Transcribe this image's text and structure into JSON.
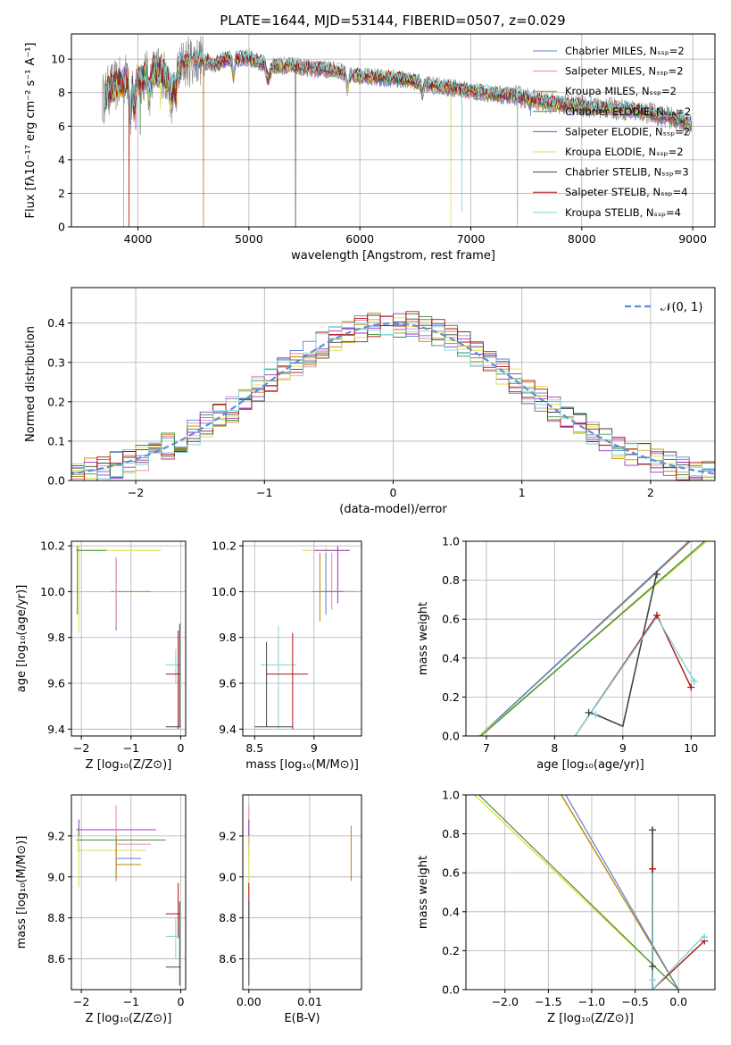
{
  "figure_title": "PLATE=1644, MJD=53144, FIBERID=0507, z=0.029",
  "colors": {
    "Chabrier MILES": "#5b7fd6",
    "Salpeter MILES": "#e38aa6",
    "Kroupa MILES": "#b8860b",
    "Chabrier ELODIE": "#3f8f3f",
    "Salpeter ELODIE": "#9b30c0",
    "Kroupa ELODIE": "#dde04a",
    "Chabrier STELIB": "#444444",
    "Salpeter STELIB": "#b01010",
    "Kroupa STELIB": "#7fd6d6",
    "gray": "#808080",
    "orange": "#e07020",
    "dashed": "#5b8fd6"
  },
  "chart_data": [
    {
      "id": "spectrum",
      "type": "line",
      "xlabel": "wavelength [Angstrom, rest frame]",
      "ylabel": "Flux [fλ10⁻¹⁷ erg cm⁻² s⁻¹ A⁻¹]",
      "xlim": [
        3400,
        9200
      ],
      "ylim": [
        0,
        11.5
      ],
      "xticks": [
        4000,
        5000,
        6000,
        7000,
        8000,
        9000
      ],
      "yticks": [
        0,
        2,
        4,
        6,
        8,
        10
      ],
      "legend_position": "top-right",
      "series": [
        {
          "name": "Chabrier MILES, Nₛₛₚ=2"
        },
        {
          "name": "Salpeter MILES, Nₛₛₚ=2"
        },
        {
          "name": "Kroupa MILES, Nₛₛₚ=2"
        },
        {
          "name": "Chabrier ELODIE, Nₛₛₚ=2"
        },
        {
          "name": "Salpeter ELODIE, Nₛₛₚ=2"
        },
        {
          "name": "Kroupa ELODIE, Nₛₛₚ=2"
        },
        {
          "name": "Chabrier STELIB, Nₛₛₚ=3"
        },
        {
          "name": "Salpeter STELIB, Nₛₛₚ=4"
        },
        {
          "name": "Kroupa STELIB, Nₛₛₚ=4"
        }
      ],
      "x": [
        3680,
        3720,
        3760,
        3800,
        3850,
        3900,
        3950,
        4000,
        4100,
        4200,
        4300,
        4400,
        4500,
        4600,
        4700,
        4800,
        4900,
        5000,
        5100,
        5200,
        5300,
        5400,
        5500,
        5600,
        5700,
        5800,
        5900,
        6000,
        6200,
        6400,
        6600,
        6800,
        7000,
        7200,
        7400,
        7600,
        7800,
        8000,
        8200,
        8400,
        8600,
        8800,
        8990
      ],
      "y": [
        7.6,
        8.0,
        8.3,
        8.4,
        8.6,
        8.9,
        9.0,
        8.8,
        9.1,
        9.3,
        8.6,
        9.7,
        10.0,
        9.9,
        9.7,
        10.0,
        10.0,
        10.1,
        9.8,
        9.6,
        9.6,
        9.6,
        9.5,
        9.4,
        9.4,
        9.3,
        9.1,
        9.0,
        8.9,
        8.8,
        8.5,
        8.3,
        8.1,
        7.9,
        7.8,
        7.5,
        7.3,
        7.2,
        7.1,
        7.0,
        6.8,
        6.5,
        6.1
      ]
    },
    {
      "id": "residuals",
      "type": "step",
      "xlabel": "(data-model)/error",
      "ylabel": "Normed distribution",
      "xlim": [
        -2.5,
        2.5
      ],
      "ylim": [
        0,
        0.49
      ],
      "xticks": [
        -2,
        -1,
        0,
        1,
        2
      ],
      "yticks": [
        0.0,
        0.1,
        0.2,
        0.3,
        0.4
      ],
      "legend": "𝒩(0, 1)",
      "legend_position": "top-right",
      "bin_width": 0.1
    },
    {
      "id": "age_Z",
      "type": "errorbar",
      "xlabel": "Z [log₁₀(Z/Z⊙)]",
      "ylabel": "age  [log₁₀(age/yr)]",
      "xlim": [
        -2.2,
        0.1
      ],
      "ylim": [
        9.37,
        10.22
      ],
      "xticks": [
        -2,
        -1,
        0
      ],
      "yticks": [
        9.4,
        9.6,
        9.8,
        10.0,
        10.2
      ]
    },
    {
      "id": "age_mass",
      "type": "errorbar",
      "xlabel": "mass [log₁₀(M/M⊙)]",
      "xlim": [
        8.4,
        9.4
      ],
      "ylim": [
        9.37,
        10.22
      ],
      "xticks": [
        8.5,
        9.0
      ],
      "yticks": [
        9.4,
        9.6,
        9.8,
        10.0,
        10.2
      ]
    },
    {
      "id": "weight_age",
      "type": "line",
      "xlabel": "age  [log₁₀(age/yr)]",
      "ylabel": "mass weight",
      "xlim": [
        6.7,
        10.35
      ],
      "ylim": [
        0,
        1
      ],
      "xticks": [
        7,
        8,
        9,
        10
      ],
      "yticks": [
        0.0,
        0.2,
        0.4,
        0.6,
        0.8,
        1.0
      ]
    },
    {
      "id": "mass_Z",
      "type": "errorbar",
      "xlabel": "Z [log₁₀(Z/Z⊙)]",
      "ylabel": "mass [log₁₀(M/M⊙)]",
      "xlim": [
        -2.2,
        0.1
      ],
      "ylim": [
        8.45,
        9.4
      ],
      "xticks": [
        -2,
        -1,
        0
      ],
      "yticks": [
        8.6,
        8.8,
        9.0,
        9.2
      ]
    },
    {
      "id": "mass_ebv",
      "type": "errorbar",
      "xlabel": "E(B-V)",
      "xlim": [
        -0.001,
        0.0185
      ],
      "ylim": [
        8.45,
        9.4
      ],
      "xticks": [
        0.0,
        0.01
      ],
      "yticks": [
        8.6,
        8.8,
        9.0,
        9.2
      ]
    },
    {
      "id": "weight_Z",
      "type": "line",
      "xlabel": "Z [log₁₀(Z/Z⊙)]",
      "ylabel": "mass weight",
      "xlim": [
        -2.45,
        0.42
      ],
      "ylim": [
        0,
        1
      ],
      "xticks": [
        -2.0,
        -1.5,
        -1.0,
        -0.5,
        0.0
      ],
      "yticks": [
        0.0,
        0.2,
        0.4,
        0.6,
        0.8,
        1.0
      ]
    }
  ]
}
